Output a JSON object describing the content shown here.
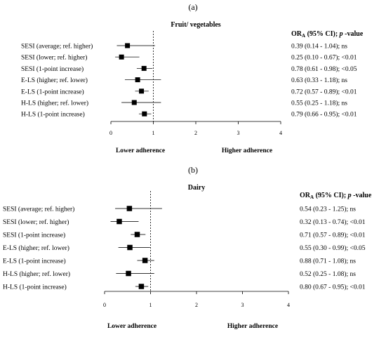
{
  "chart_data": [
    {
      "type": "forest",
      "panel_label": "(a)",
      "title": "Fruit/ vegetables",
      "xlim": [
        0,
        4
      ],
      "xticks": [
        0,
        1,
        2,
        3,
        4
      ],
      "reference_line": 1,
      "left_direction_label": "Lower adherence",
      "right_direction_label": "Higher adherence",
      "or_header": {
        "prefix": "OR",
        "subscript": "A",
        "suffix": " (95% CI); ",
        "italic": "p",
        "tail": " -value"
      },
      "rows": [
        {
          "label": "SESI (average; ref. higher)",
          "or": 0.39,
          "ci": [
            0.14,
            1.04
          ],
          "text": "0.39 (0.14 - 1.04); ns"
        },
        {
          "label": "SESI (lower; ref. higher)",
          "or": 0.25,
          "ci": [
            0.1,
            0.67
          ],
          "text": "0.25 (0.10 - 0.67); <0.01"
        },
        {
          "label": "SESI (1-point increase)",
          "or": 0.78,
          "ci": [
            0.61,
            0.98
          ],
          "text": "0.78 (0.61 - 0.98); <0.05"
        },
        {
          "label": "E-LS (higher; ref. lower)",
          "or": 0.63,
          "ci": [
            0.33,
            1.18
          ],
          "text": "0.63 (0.33 - 1.18); ns"
        },
        {
          "label": "E-LS (1-point increase)",
          "or": 0.72,
          "ci": [
            0.57,
            0.89
          ],
          "text": "0.72 (0.57 - 0.89); <0.01"
        },
        {
          "label": "H-LS (higher; ref. lower)",
          "or": 0.55,
          "ci": [
            0.25,
            1.18
          ],
          "text": "0.55 (0.25 - 1.18); ns"
        },
        {
          "label": "H-LS (1-point increase)",
          "or": 0.79,
          "ci": [
            0.66,
            0.95
          ],
          "text": "0.79 (0.66 - 0.95); <0.01"
        }
      ]
    },
    {
      "type": "forest",
      "panel_label": "(b)",
      "title": "Dairy",
      "xlim": [
        0,
        4
      ],
      "xticks": [
        0,
        1,
        2,
        3,
        4
      ],
      "reference_line": 1,
      "left_direction_label": "Lower adherence",
      "right_direction_label": "Higher adherence",
      "or_header": {
        "prefix": "OR",
        "subscript": "A",
        "suffix": " (95% CI); ",
        "italic": "p",
        "tail": " -value"
      },
      "rows": [
        {
          "label": "SESI (average; ref. higher)",
          "or": 0.54,
          "ci": [
            0.23,
            1.25
          ],
          "text": "0.54 (0.23 - 1.25); ns"
        },
        {
          "label": "SESI (lower; ref. higher)",
          "or": 0.32,
          "ci": [
            0.13,
            0.74
          ],
          "text": "0.32 (0.13 - 0.74); <0.01"
        },
        {
          "label": "SESI (1-point increase)",
          "or": 0.71,
          "ci": [
            0.57,
            0.89
          ],
          "text": "0.71 (0.57 - 0.89); <0.01"
        },
        {
          "label": "E-LS (higher; ref. lower)",
          "or": 0.55,
          "ci": [
            0.3,
            0.99
          ],
          "text": "0.55 (0.30 - 0.99); <0.05"
        },
        {
          "label": "E-LS (1-point increase)",
          "or": 0.88,
          "ci": [
            0.71,
            1.08
          ],
          "text": "0.88 (0.71 - 1.08); ns"
        },
        {
          "label": "H-LS (higher; ref. lower)",
          "or": 0.52,
          "ci": [
            0.25,
            1.08
          ],
          "text": "0.52 (0.25 - 1.08); ns"
        },
        {
          "label": "H-LS (1-point increase)",
          "or": 0.8,
          "ci": [
            0.67,
            0.95
          ],
          "text": "0.80 (0.67 - 0.95); <0.01"
        }
      ]
    }
  ]
}
